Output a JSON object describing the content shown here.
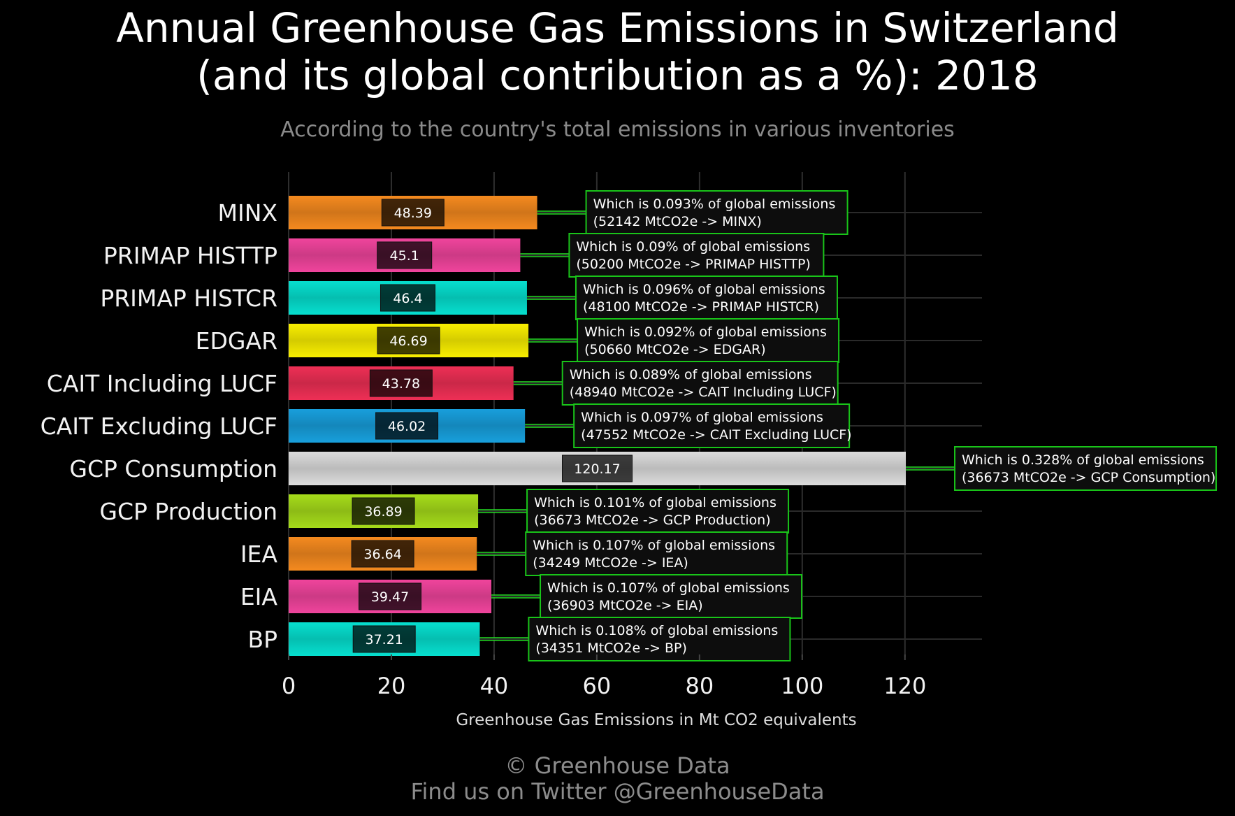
{
  "title_line1": "Annual Greenhouse Gas Emissions in Switzerland",
  "title_line2": "(and its global contribution as a %): 2018",
  "subtitle": "According to the country's total emissions in various inventories",
  "footer_line1": "© Greenhouse Data",
  "footer_line2": "Find us on Twitter @GreenhouseData",
  "chart_data": {
    "type": "bar",
    "orientation": "horizontal",
    "xlabel": "Greenhouse Gas Emissions in Mt CO2 equivalents",
    "ylabel": "",
    "xlim": [
      0,
      135
    ],
    "xticks": [
      0,
      20,
      40,
      60,
      80,
      100,
      120
    ],
    "grid": true,
    "categories": [
      "MINX",
      "PRIMAP HISTTP",
      "PRIMAP HISTCR",
      "EDGAR",
      "CAIT Including LUCF",
      "CAIT Excluding LUCF",
      "GCP Consumption",
      "GCP Production",
      "IEA",
      "EIA",
      "BP"
    ],
    "values": [
      48.39,
      45.1,
      46.4,
      46.69,
      43.78,
      46.02,
      120.17,
      36.89,
      36.64,
      39.47,
      37.21
    ],
    "value_labels": [
      "48.39",
      "45.1",
      "46.4",
      "46.69",
      "43.78",
      "46.02",
      "120.17",
      "36.89",
      "36.64",
      "39.47",
      "37.21"
    ],
    "colors": [
      "#f58a1f",
      "#f0449c",
      "#06dfcf",
      "#f9ef00",
      "#ee2f55",
      "#189fdc",
      "#dcdcdc",
      "#a6dc1a",
      "#f58a1f",
      "#f0449c",
      "#06dfcf"
    ],
    "annotations": [
      [
        "Which is 0.093% of global emissions",
        "(52142 MtCO2e -> MINX)"
      ],
      [
        "Which is 0.09% of global emissions",
        "(50200 MtCO2e -> PRIMAP HISTTP)"
      ],
      [
        "Which is 0.096% of global emissions",
        "(48100 MtCO2e -> PRIMAP HISTCR)"
      ],
      [
        "Which is 0.092% of global emissions",
        "(50660 MtCO2e -> EDGAR)"
      ],
      [
        "Which is 0.089% of global emissions",
        "(48940 MtCO2e -> CAIT Including LUCF)"
      ],
      [
        "Which is 0.097% of global emissions",
        "(47552 MtCO2e -> CAIT Excluding LUCF)"
      ],
      [
        "Which is 0.328% of global emissions",
        "(36673 MtCO2e -> GCP Consumption)"
      ],
      [
        "Which is 0.101% of global emissions",
        "(36673 MtCO2e -> GCP Production)"
      ],
      [
        "Which is 0.107% of global emissions",
        "(34249 MtCO2e -> IEA)"
      ],
      [
        "Which is 0.107% of global emissions",
        "(36903 MtCO2e -> EIA)"
      ],
      [
        "Which is 0.108% of global emissions",
        "(34351 MtCO2e -> BP)"
      ]
    ],
    "annotation_border_color": "#19c419",
    "connector_color": "#22dd22"
  }
}
